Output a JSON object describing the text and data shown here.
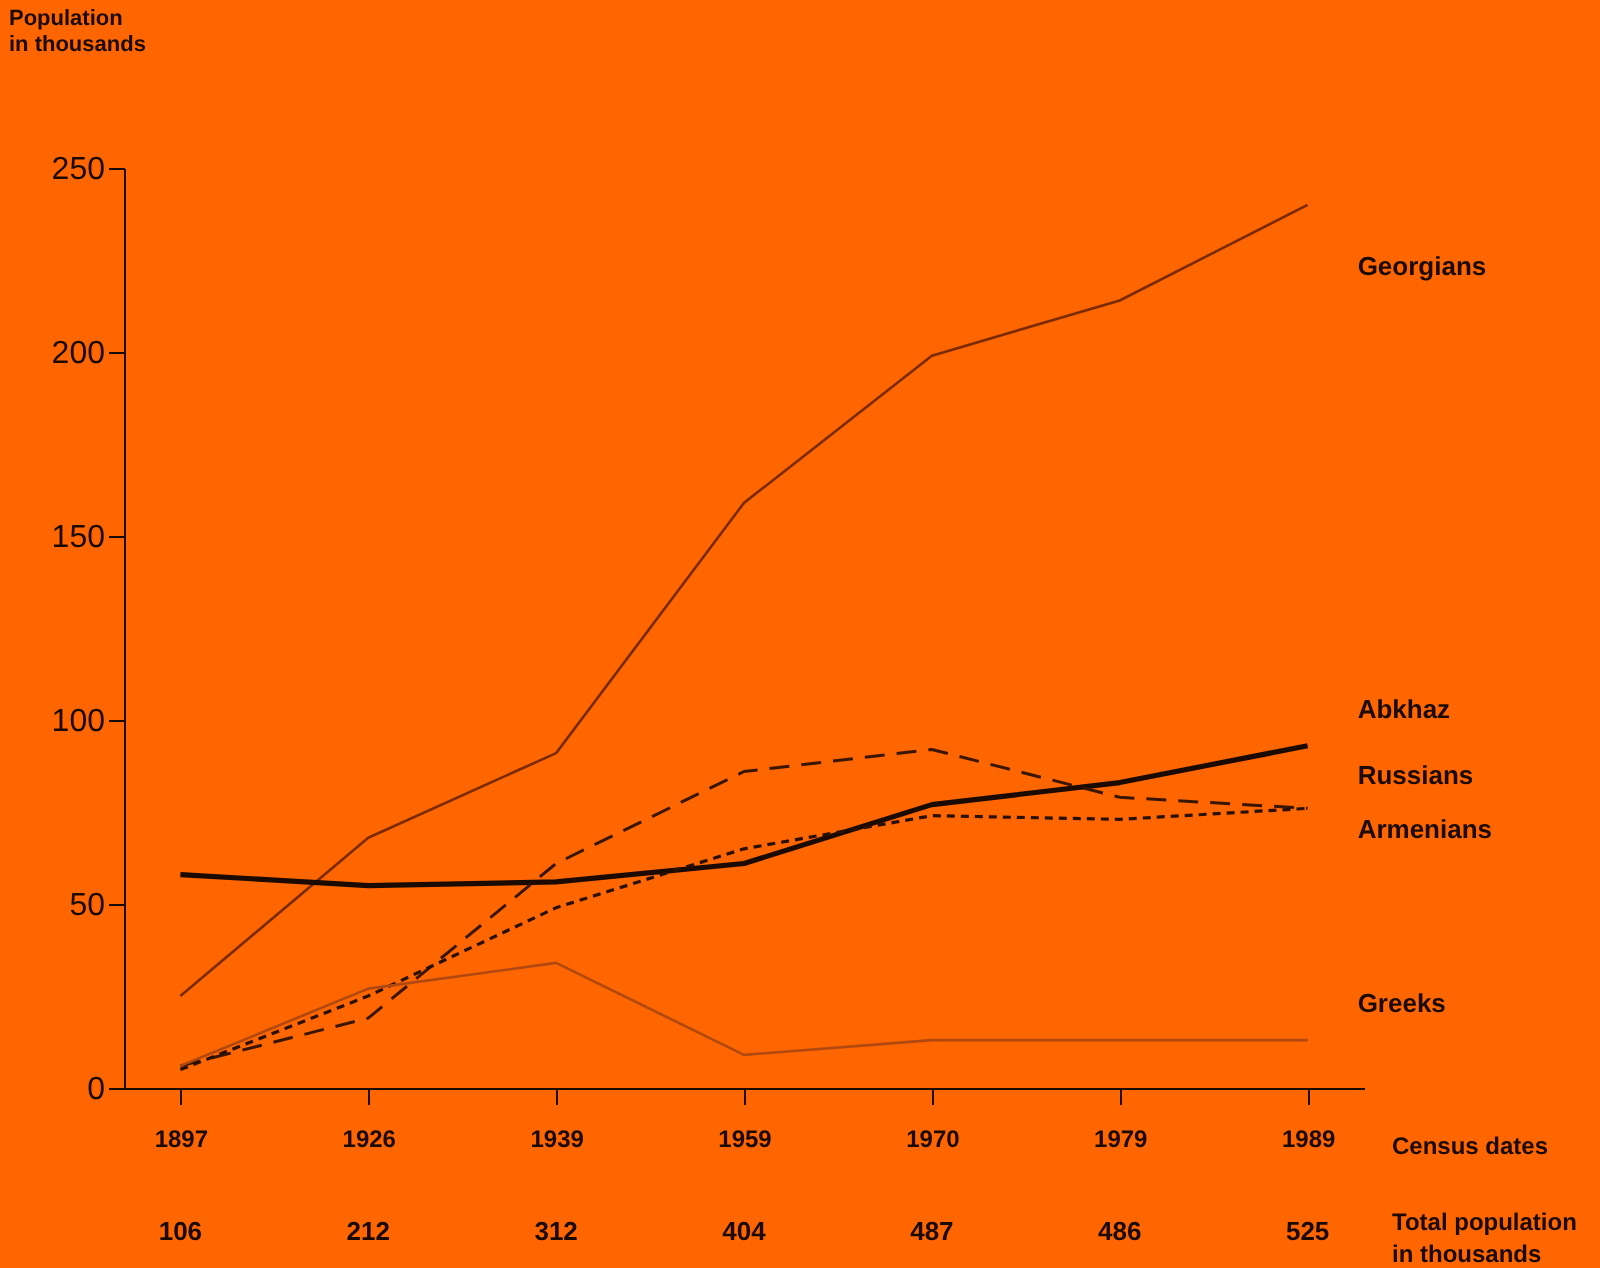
{
  "chart_data": {
    "type": "line",
    "ylabel": "Population\nin thousands",
    "xlabel": "Census dates",
    "categories": [
      "1897",
      "1926",
      "1939",
      "1959",
      "1970",
      "1979",
      "1989"
    ],
    "series": [
      {
        "name": "Georgians",
        "color": "#7a2a05",
        "line_style": "solid",
        "values": [
          25,
          68,
          91,
          159,
          199,
          214,
          240
        ]
      },
      {
        "name": "Abkhaz",
        "color": "#1a0a00",
        "line_style": "solid",
        "values": [
          58,
          55,
          56,
          61,
          77,
          83,
          93
        ]
      },
      {
        "name": "Russians",
        "color": "#3a1600",
        "line_style": "dashed",
        "values": [
          6,
          19,
          61,
          86,
          92,
          79,
          76
        ]
      },
      {
        "name": "Armenians",
        "color": "#2a1000",
        "line_style": "dotted",
        "values": [
          5,
          25,
          49,
          65,
          74,
          73,
          76
        ]
      },
      {
        "name": "Greeks",
        "color": "#b04810",
        "line_style": "solid",
        "values": [
          6,
          27,
          34,
          9,
          13,
          13,
          13
        ]
      }
    ],
    "ylim": [
      0,
      250
    ],
    "yticks": [
      0,
      50,
      100,
      150,
      200,
      250
    ],
    "grid": false,
    "marker": "none",
    "annotations": [
      "106",
      "212",
      "312",
      "404",
      "487",
      "486",
      "525",
      "Total population\nin thousands"
    ]
  }
}
